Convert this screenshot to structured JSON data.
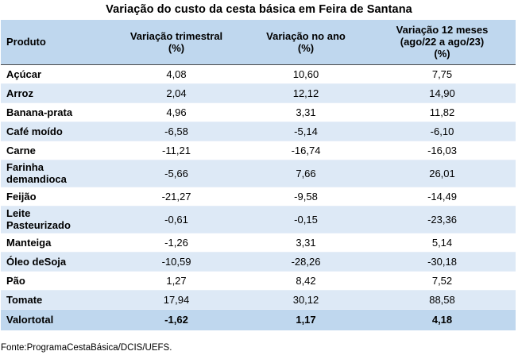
{
  "title": "Variação do custo da cesta básica em Feira de Santana",
  "headers": [
    [
      "Produto"
    ],
    [
      "Variação trimestral",
      "(%)"
    ],
    [
      "Variação no ano",
      "(%)"
    ],
    [
      "Variação 12 meses",
      "(ago/22 a ago/23)",
      "(%)"
    ]
  ],
  "rows": [
    {
      "product": [
        "Açúcar"
      ],
      "trimestral": "4,08",
      "ano": "10,60",
      "doze_meses": "7,75"
    },
    {
      "product": [
        "Arroz"
      ],
      "trimestral": "2,04",
      "ano": "12,12",
      "doze_meses": "14,90"
    },
    {
      "product": [
        "Banana-prata"
      ],
      "trimestral": "4,96",
      "ano": "3,31",
      "doze_meses": "11,82"
    },
    {
      "product": [
        "Café moído"
      ],
      "trimestral": "-6,58",
      "ano": "-5,14",
      "doze_meses": "-6,10"
    },
    {
      "product": [
        "Carne"
      ],
      "trimestral": "-11,21",
      "ano": "-16,74",
      "doze_meses": "-16,03"
    },
    {
      "product": [
        "Farinha",
        "demandioca"
      ],
      "trimestral": "-5,66",
      "ano": "7,66",
      "doze_meses": "26,01"
    },
    {
      "product": [
        "Feijão"
      ],
      "trimestral": "-21,27",
      "ano": "-9,58",
      "doze_meses": "-14,49"
    },
    {
      "product": [
        "Leite",
        "Pasteurizado"
      ],
      "trimestral": "-0,61",
      "ano": "-0,15",
      "doze_meses": "-23,36"
    },
    {
      "product": [
        "Manteiga"
      ],
      "trimestral": "-1,26",
      "ano": "3,31",
      "doze_meses": "5,14"
    },
    {
      "product": [
        "Óleo deSoja"
      ],
      "trimestral": "-10,59",
      "ano": "-28,26",
      "doze_meses": "-30,18"
    },
    {
      "product": [
        "Pão"
      ],
      "trimestral": "1,27",
      "ano": "8,42",
      "doze_meses": "7,52"
    },
    {
      "product": [
        "Tomate"
      ],
      "trimestral": "17,94",
      "ano": "30,12",
      "doze_meses": "88,58"
    }
  ],
  "total": {
    "label": "Valortotal",
    "trimestral": "-1,62",
    "ano": "1,17",
    "doze_meses": "4,18"
  },
  "source": "Fonte:ProgramaCestaBásica/DCIS/UEFS.",
  "colors": {
    "header_bg": "#bfd7ee",
    "row_alt_bg": "#dde9f6",
    "rule": "#4a4a4a"
  }
}
